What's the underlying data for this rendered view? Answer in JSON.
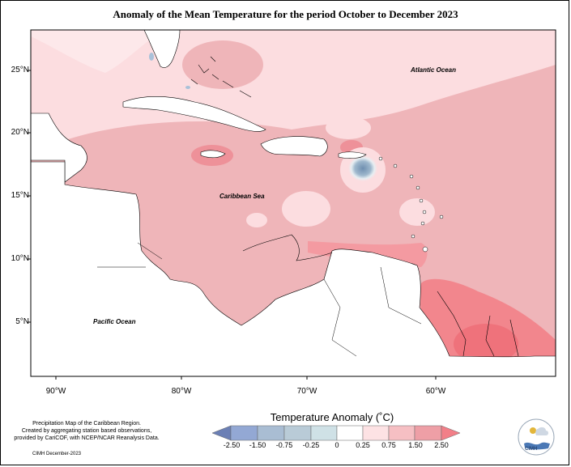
{
  "title": "Anomaly of the Mean Temperature for the period October to December 2023",
  "lat_labels": [
    "25°N",
    "20°N",
    "15°N",
    "10°N",
    "5°N"
  ],
  "lon_labels": [
    "90°W",
    "80°W",
    "70°W",
    "60°W"
  ],
  "ocean_labels": {
    "atlantic": "Atlantic Ocean",
    "caribbean": "Caribbean Sea",
    "pacific": "Pacific Ocean"
  },
  "legend": {
    "title": "Temperature Anomaly (˚C)",
    "ticks": [
      "-2.50",
      "-1.50",
      "-0.75",
      "-0.25",
      "0",
      "0.25",
      "0.75",
      "1.50",
      "2.50"
    ],
    "colors": [
      "#6b7fb5",
      "#93a8d4",
      "#a9c1d9",
      "#cfe1e6",
      "#ffffff",
      "#fde2e4",
      "#f6bfc3",
      "#ee9fa6",
      "#f27f88"
    ]
  },
  "colors": {
    "land": "#ffffff",
    "light_anomaly": "#fcdde0",
    "mid_anomaly": "#efb5b9",
    "strong_anomaly": "#f2868d",
    "cold_anomaly": "#6f8fb0"
  },
  "credit": {
    "line1": "Precipitation Map of the Caribbean Region.",
    "line2": "Created by aggregating station based observations,",
    "line3": "provided by CariCOF, with NCEP/NCAR Reanalysis Data.",
    "date": "CIMH December-2023"
  },
  "logo": {
    "text": "CIMH"
  }
}
